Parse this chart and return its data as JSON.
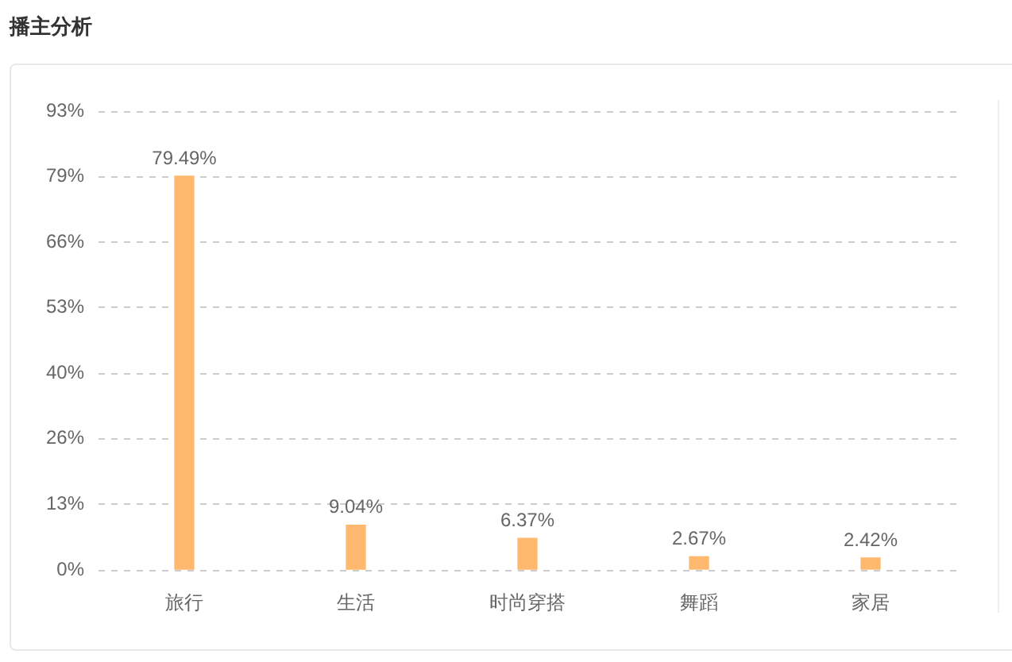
{
  "chart_data": {
    "type": "bar",
    "title": "播主分析",
    "categories": [
      "旅行",
      "生活",
      "时尚穿搭",
      "舞蹈",
      "家居"
    ],
    "values": [
      79.49,
      9.04,
      6.37,
      2.67,
      2.42
    ],
    "value_labels": [
      "79.49%",
      "9.04%",
      "6.37%",
      "2.67%",
      "2.42%"
    ],
    "color": "#ffb96e",
    "ylim": [
      0,
      92.61
    ],
    "yticks": [
      {
        "value": 0,
        "label": "0%"
      },
      {
        "value": 13.23,
        "label": "13%"
      },
      {
        "value": 26.46,
        "label": "26%"
      },
      {
        "value": 39.69,
        "label": "40%"
      },
      {
        "value": 52.92,
        "label": "53%"
      },
      {
        "value": 66.15,
        "label": "66%"
      },
      {
        "value": 79.38,
        "label": "79%"
      },
      {
        "value": 92.61,
        "label": "93%"
      }
    ],
    "grid": "y"
  }
}
